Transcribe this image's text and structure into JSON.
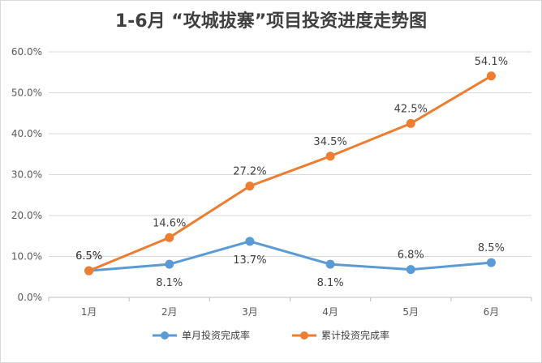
{
  "chart_data": {
    "type": "line",
    "title": "1-6月 “攻城拔寨”项目投资进度走势图",
    "categories": [
      "1月",
      "2月",
      "3月",
      "4月",
      "5月",
      "6月"
    ],
    "ylim": [
      0,
      60
    ],
    "yticks": [
      "0.0%",
      "10.0%",
      "20.0%",
      "30.0%",
      "40.0%",
      "50.0%",
      "60.0%"
    ],
    "ytick_values": [
      0,
      10,
      20,
      30,
      40,
      50,
      60
    ],
    "grid": true,
    "legend_position": "bottom",
    "series": [
      {
        "name": "单月投资完成率",
        "color": "#5B9BD5",
        "values": [
          6.5,
          8.1,
          13.7,
          8.1,
          6.8,
          8.5
        ],
        "labels": [
          "6.5%",
          "8.1%",
          "13.7%",
          "8.1%",
          "6.8%",
          "8.5%"
        ],
        "label_pos": [
          "above",
          "below",
          "below",
          "below",
          "above",
          "above"
        ]
      },
      {
        "name": "累计投资完成率",
        "color": "#ED7D31",
        "values": [
          6.5,
          14.6,
          27.2,
          34.5,
          42.5,
          54.1
        ],
        "labels": [
          "6.5%",
          "14.6%",
          "27.2%",
          "34.5%",
          "42.5%",
          "54.1%"
        ],
        "label_pos": [
          "above",
          "above",
          "above",
          "above",
          "above",
          "above"
        ]
      }
    ]
  }
}
